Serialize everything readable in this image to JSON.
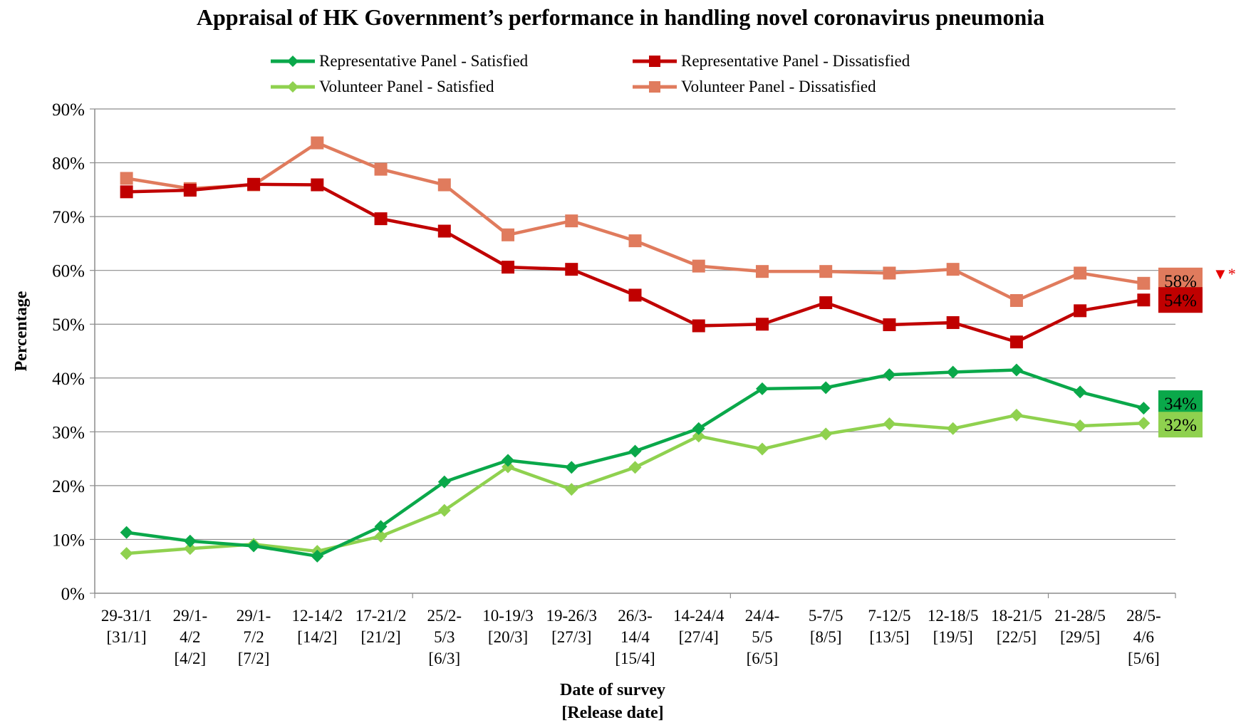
{
  "chart_data": {
    "type": "line",
    "title": "Appraisal of HK Government’s performance in handling novel coronavirus pneumonia",
    "xlabel": "Date of survey\n[Release date]",
    "ylabel": "Percentage",
    "ylim": [
      0,
      90
    ],
    "yticks": [
      "0%",
      "10%",
      "20%",
      "30%",
      "40%",
      "50%",
      "60%",
      "70%",
      "80%",
      "90%"
    ],
    "grid": true,
    "legend_position": "top",
    "categories": [
      [
        "29-31/1",
        "[31/1]"
      ],
      [
        "29/1-",
        "4/2",
        "[4/2]"
      ],
      [
        "29/1-",
        "7/2",
        "[7/2]"
      ],
      [
        "12-14/2",
        "[14/2]"
      ],
      [
        "17-21/2",
        "[21/2]"
      ],
      [
        "25/2-",
        "5/3",
        "[6/3]"
      ],
      [
        "10-19/3",
        "[20/3]"
      ],
      [
        "19-26/3",
        "[27/3]"
      ],
      [
        "26/3-",
        "14/4",
        "[15/4]"
      ],
      [
        "14-24/4",
        "[27/4]"
      ],
      [
        "24/4-",
        "5/5",
        "[6/5]"
      ],
      [
        "5-7/5",
        "[8/5]"
      ],
      [
        "7-12/5",
        "[13/5]"
      ],
      [
        "12-18/5",
        "[19/5]"
      ],
      [
        "18-21/5",
        "[22/5]"
      ],
      [
        "21-28/5",
        "[29/5]"
      ],
      [
        "28/5-",
        "4/6",
        "[5/6]"
      ]
    ],
    "series": [
      {
        "name": "Representative Panel - Satisfied",
        "color": "#0aa84a",
        "marker": "diamond",
        "values": [
          11.3,
          9.7,
          8.8,
          6.9,
          12.4,
          20.7,
          24.7,
          23.4,
          26.4,
          30.6,
          38.0,
          38.2,
          40.6,
          41.1,
          41.5,
          37.4,
          34.4
        ],
        "end_label": "34%"
      },
      {
        "name": "Representative Panel - Dissatisfied",
        "color": "#c00000",
        "marker": "square",
        "values": [
          74.6,
          74.9,
          76.0,
          75.9,
          69.6,
          67.3,
          60.6,
          60.2,
          55.4,
          49.7,
          50.0,
          54.0,
          49.9,
          50.3,
          46.7,
          52.5,
          54.5
        ],
        "end_label": "54%"
      },
      {
        "name": "Volunteer Panel - Satisfied",
        "color": "#8fd14f",
        "marker": "diamond",
        "values": [
          7.4,
          8.3,
          9.1,
          7.8,
          10.6,
          15.4,
          23.5,
          19.3,
          23.4,
          29.2,
          26.8,
          29.6,
          31.5,
          30.6,
          33.1,
          31.1,
          31.6
        ],
        "end_label": "32%"
      },
      {
        "name": "Volunteer Panel - Dissatisfied",
        "color": "#e07b5d",
        "marker": "square",
        "values": [
          77.1,
          75.2,
          75.9,
          83.7,
          78.8,
          75.9,
          66.6,
          69.2,
          65.5,
          60.8,
          59.8,
          59.8,
          59.5,
          60.2,
          54.4,
          59.5,
          57.6
        ],
        "end_label": "58%"
      }
    ],
    "annotation": "▼*",
    "annotation_color": "#e60000"
  }
}
